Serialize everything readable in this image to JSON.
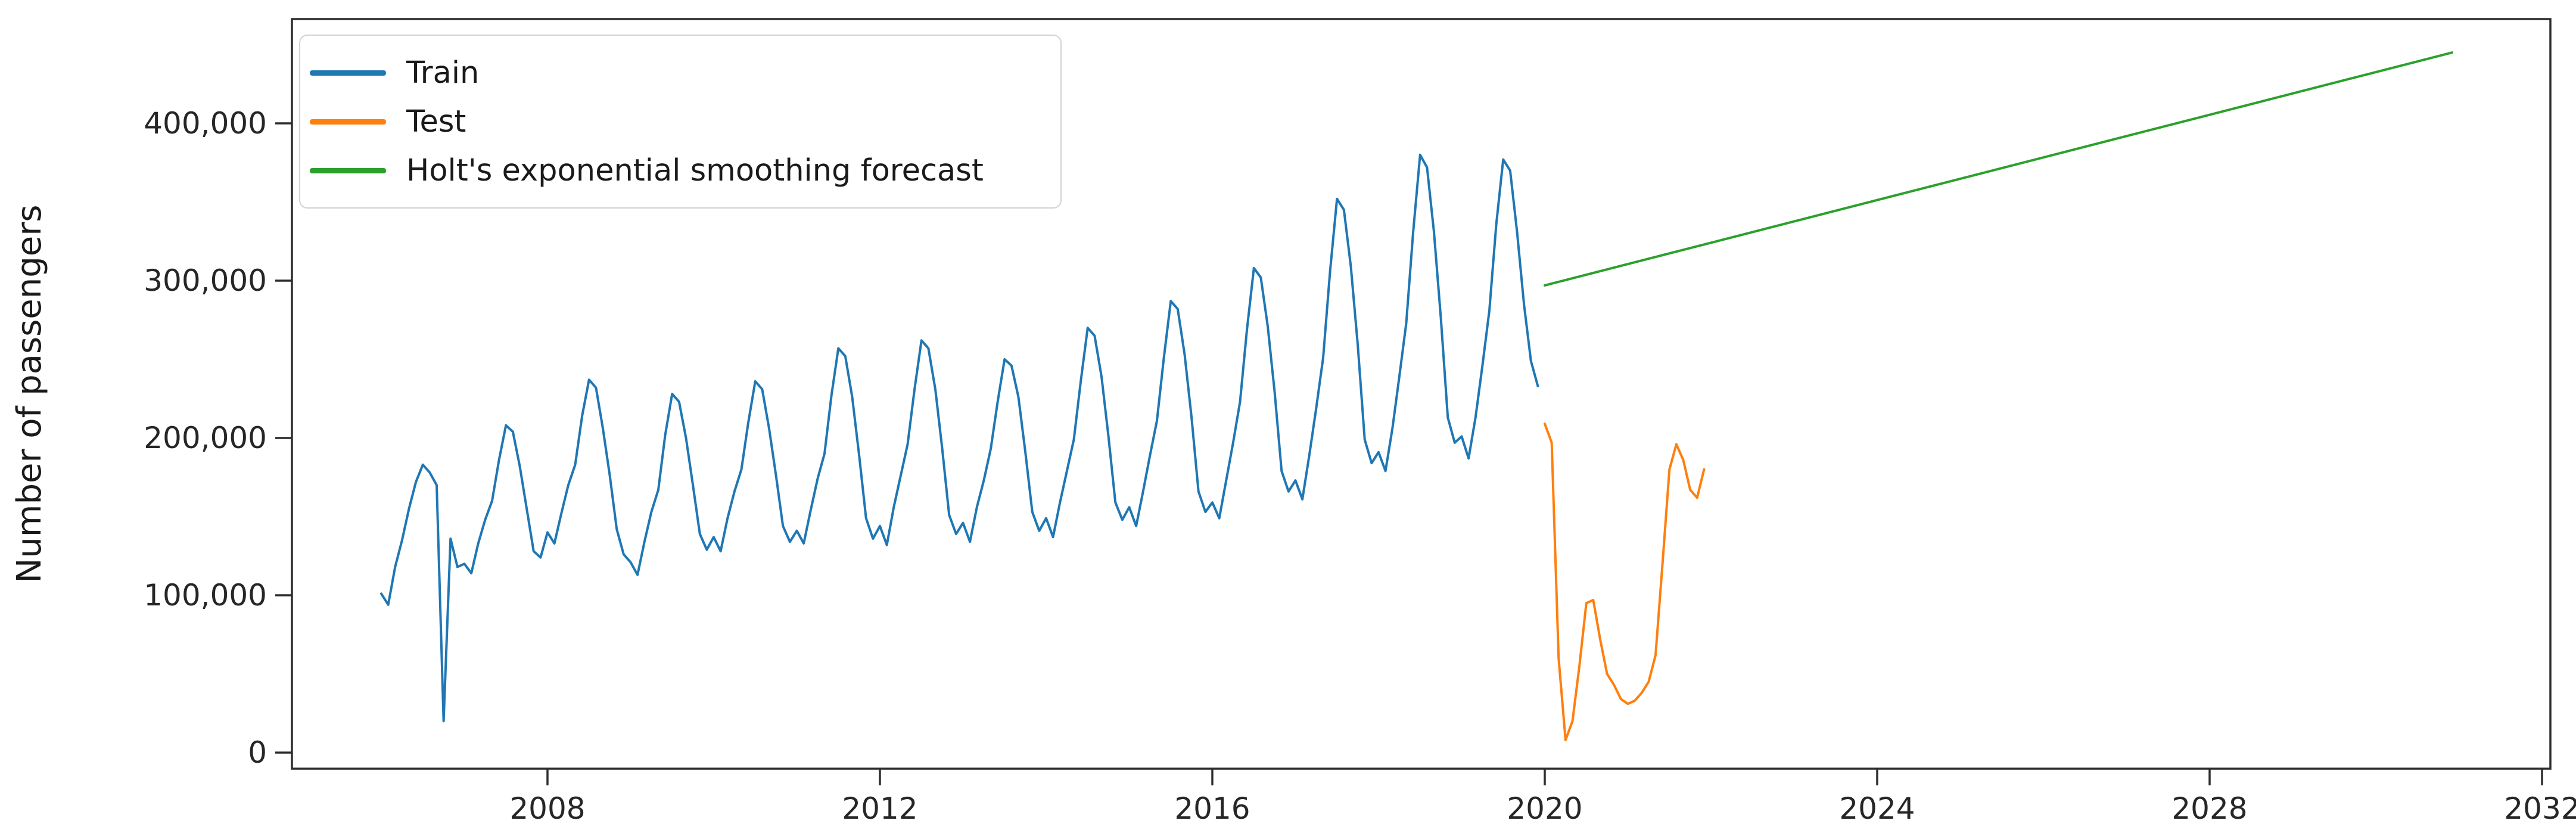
{
  "chart_data": {
    "type": "line",
    "title": "",
    "xlabel": "",
    "ylabel": "Number of passengers",
    "grid": false,
    "legend_position": "upper left",
    "xlim": [
      2004.92,
      2032.1
    ],
    "ylim": [
      -10000,
      466000
    ],
    "x_ticks": [
      {
        "value": 2008,
        "label": "2008"
      },
      {
        "value": 2012,
        "label": "2012"
      },
      {
        "value": 2016,
        "label": "2016"
      },
      {
        "value": 2020,
        "label": "2020"
      },
      {
        "value": 2024,
        "label": "2024"
      },
      {
        "value": 2028,
        "label": "2028"
      },
      {
        "value": 2032,
        "label": "2032"
      }
    ],
    "y_ticks": [
      {
        "value": 0,
        "label": "0"
      },
      {
        "value": 100000,
        "label": "100,000"
      },
      {
        "value": 200000,
        "label": "200,000"
      },
      {
        "value": 300000,
        "label": "300,000"
      },
      {
        "value": 400000,
        "label": "400,000"
      }
    ],
    "series": [
      {
        "name": "Train",
        "color": "#1f77b4",
        "x_start": 2006.0,
        "x_step_months": 1,
        "values": [
          101000,
          94000,
          118000,
          135000,
          155000,
          172000,
          183000,
          178000,
          170000,
          20000,
          136000,
          118000,
          120000,
          114000,
          133000,
          148000,
          160000,
          186000,
          208000,
          204000,
          182000,
          155000,
          128000,
          124000,
          140000,
          133000,
          152000,
          170000,
          183000,
          214000,
          237000,
          232000,
          206000,
          176000,
          142000,
          126000,
          121000,
          113000,
          134000,
          153000,
          167000,
          202000,
          228000,
          223000,
          200000,
          170000,
          139000,
          129000,
          137000,
          128000,
          149000,
          166000,
          180000,
          210000,
          236000,
          231000,
          206000,
          176000,
          144000,
          134000,
          141000,
          133000,
          154000,
          174000,
          190000,
          227000,
          257000,
          252000,
          226000,
          189000,
          149000,
          136000,
          144000,
          132000,
          156000,
          176000,
          196000,
          231000,
          262000,
          257000,
          231000,
          193000,
          151000,
          139000,
          146000,
          134000,
          156000,
          173000,
          193000,
          223000,
          250000,
          246000,
          226000,
          191000,
          153000,
          141000,
          149000,
          137000,
          159000,
          179000,
          199000,
          236000,
          270000,
          265000,
          239000,
          201000,
          159000,
          148000,
          156000,
          144000,
          166000,
          189000,
          211000,
          251000,
          287000,
          282000,
          253000,
          213000,
          166000,
          153000,
          159000,
          149000,
          173000,
          197000,
          223000,
          269000,
          308000,
          302000,
          271000,
          229000,
          179000,
          166000,
          173000,
          161000,
          189000,
          219000,
          251000,
          306000,
          352000,
          345000,
          309000,
          259000,
          199000,
          184000,
          191000,
          179000,
          206000,
          239000,
          273000,
          331000,
          380000,
          372000,
          331000,
          276000,
          213000,
          197000,
          201000,
          187000,
          213000,
          246000,
          281000,
          336000,
          377000,
          370000,
          331000,
          285000,
          249000,
          233000
        ]
      },
      {
        "name": "Test",
        "color": "#ff7f0e",
        "x_start": 2020.0,
        "x_step_months": 1,
        "values": [
          209000,
          197000,
          60000,
          8000,
          20000,
          55000,
          95000,
          97000,
          72000,
          50000,
          43000,
          34000,
          31000,
          33000,
          38000,
          45000,
          62000,
          120000,
          180000,
          196000,
          186000,
          167000,
          162000,
          180000
        ]
      },
      {
        "name": "Holt's exponential smoothing forecast",
        "color": "#2ca02c",
        "shape": "linear",
        "x": [
          2020.0,
          2030.917
        ],
        "values": [
          297000,
          445000
        ]
      }
    ]
  }
}
